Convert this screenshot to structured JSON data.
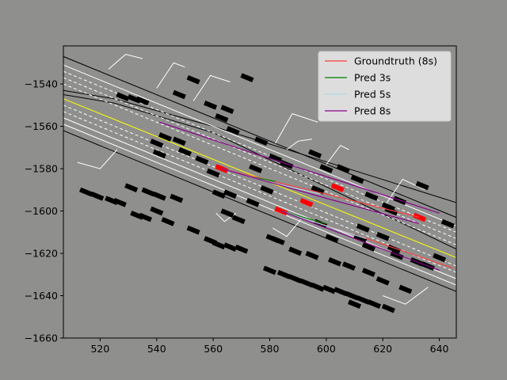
{
  "chart_data": {
    "type": "line",
    "title": "",
    "xlabel": "",
    "ylabel": "",
    "xlim": [
      507,
      646
    ],
    "ylim": [
      -1660,
      -1522
    ],
    "x_ticks": [
      520,
      540,
      560,
      580,
      600,
      620,
      640
    ],
    "y_ticks": [
      -1660,
      -1640,
      -1620,
      -1600,
      -1580,
      -1560,
      -1540
    ],
    "x_tick_labels": [
      "520",
      "540",
      "560",
      "580",
      "600",
      "620",
      "640"
    ],
    "y_tick_labels": [
      "−1660",
      "−1640",
      "−1620",
      "−1600",
      "−1580",
      "−1560",
      "−1540"
    ],
    "grid": false,
    "legend_position": "top-right",
    "colors": {
      "background": "#8f908e",
      "legend_bg": "#e6e6e6",
      "groundtruth": "#ff4040",
      "pred3": "#008000",
      "pred5": "#add8e6",
      "pred8": "#8b008b",
      "road_edge": "#000000",
      "lane": "#ffffff",
      "center_line": "#ffff00",
      "agent_target": "#ff0000",
      "agent_other": "#000000"
    },
    "legend": [
      "Groundtruth (8s)",
      "Pred 3s",
      "Pred 5s",
      "Pred 8s"
    ],
    "series": [
      {
        "name": "Groundtruth (8s)",
        "trajectories": [
          [
            [
              563,
              -1580
            ],
            [
              600,
              -1592
            ],
            [
              633,
              -1603
            ]
          ],
          [
            [
              584,
              -1600
            ],
            [
              612,
              -1612
            ],
            [
              645,
              -1627
            ]
          ]
        ]
      },
      {
        "name": "Pred 3s",
        "trajectories": [
          [
            [
              563,
              -1580
            ],
            [
              574,
              -1584
            ],
            [
              582,
              -1586
            ]
          ],
          [
            [
              584,
              -1600
            ],
            [
              592,
              -1603
            ],
            [
              600,
              -1606
            ]
          ]
        ]
      },
      {
        "name": "Pred 5s",
        "trajectories": [
          [
            [
              563,
              -1580
            ],
            [
              582,
              -1587
            ],
            [
              598,
              -1592
            ]
          ],
          [
            [
              584,
              -1600
            ],
            [
              600,
              -1607
            ],
            [
              614,
              -1613
            ]
          ]
        ]
      },
      {
        "name": "Pred 8s",
        "trajectories": [
          [
            [
              541,
              -1558
            ],
            [
              575,
              -1573
            ],
            [
              610,
              -1588
            ],
            [
              640,
              -1601
            ]
          ],
          [
            [
              563,
              -1580
            ],
            [
              600,
              -1594
            ],
            [
              633,
              -1606
            ]
          ],
          [
            [
              584,
              -1600
            ],
            [
              612,
              -1614
            ],
            [
              640,
              -1628
            ]
          ]
        ]
      }
    ],
    "map_lines": [
      {
        "kind": "road_edge",
        "points": [
          [
            507,
            -1527
          ],
          [
            646,
            -1603
          ]
        ]
      },
      {
        "kind": "road_edge",
        "points": [
          [
            507,
            -1562
          ],
          [
            646,
            -1638
          ]
        ]
      },
      {
        "kind": "road_edge",
        "points": [
          [
            507,
            -1543
          ],
          [
            525,
            -1547
          ],
          [
            560,
            -1560
          ],
          [
            646,
            -1596
          ]
        ]
      },
      {
        "kind": "road_edge",
        "points": [
          [
            507,
            -1545
          ],
          [
            525,
            -1549
          ],
          [
            560,
            -1563
          ],
          [
            646,
            -1618
          ]
        ]
      },
      {
        "kind": "center_line",
        "points": [
          [
            507,
            -1547
          ],
          [
            646,
            -1622
          ]
        ]
      },
      {
        "kind": "lane_solid",
        "points": [
          [
            507,
            -1531
          ],
          [
            646,
            -1607
          ]
        ]
      },
      {
        "kind": "lane_solid",
        "points": [
          [
            507,
            -1556
          ],
          [
            646,
            -1632
          ]
        ]
      },
      {
        "kind": "lane_solid",
        "points": [
          [
            507,
            -1559
          ],
          [
            646,
            -1635
          ]
        ]
      },
      {
        "kind": "lane_dashed",
        "points": [
          [
            507,
            -1534
          ],
          [
            646,
            -1610
          ]
        ]
      },
      {
        "kind": "lane_dashed",
        "points": [
          [
            507,
            -1537
          ],
          [
            646,
            -1613
          ]
        ]
      },
      {
        "kind": "lane_dashed",
        "points": [
          [
            507,
            -1540
          ],
          [
            646,
            -1616
          ]
        ]
      },
      {
        "kind": "lane_dashed",
        "points": [
          [
            507,
            -1550
          ],
          [
            646,
            -1626
          ]
        ]
      },
      {
        "kind": "lane_dashed",
        "points": [
          [
            507,
            -1553
          ],
          [
            646,
            -1629
          ]
        ]
      },
      {
        "kind": "crosswalk",
        "points": [
          [
            523,
            -1533
          ],
          [
            529,
            -1526
          ],
          [
            535,
            -1528
          ]
        ]
      },
      {
        "kind": "crosswalk",
        "points": [
          [
            540,
            -1542
          ],
          [
            546,
            -1530
          ],
          [
            550,
            -1532
          ]
        ]
      },
      {
        "kind": "crosswalk",
        "points": [
          [
            553,
            -1548
          ],
          [
            559,
            -1536
          ],
          [
            566,
            -1539
          ]
        ]
      },
      {
        "kind": "crosswalk",
        "points": [
          [
            582,
            -1568
          ],
          [
            588,
            -1554
          ],
          [
            597,
            -1558
          ]
        ]
      },
      {
        "kind": "crosswalk",
        "points": [
          [
            586,
            -1571
          ],
          [
            590,
            -1567
          ],
          [
            595,
            -1566
          ]
        ]
      },
      {
        "kind": "crosswalk",
        "points": [
          [
            600,
            -1578
          ],
          [
            605,
            -1569
          ],
          [
            608,
            -1571
          ]
        ]
      },
      {
        "kind": "crosswalk",
        "points": [
          [
            621,
            -1597
          ],
          [
            627,
            -1585
          ],
          [
            635,
            -1590
          ]
        ]
      },
      {
        "kind": "crosswalk",
        "points": [
          [
            512,
            -1577
          ],
          [
            520,
            -1580
          ],
          [
            526,
            -1571
          ]
        ]
      },
      {
        "kind": "crosswalk",
        "points": [
          [
            581,
            -1608
          ],
          [
            586,
            -1612
          ],
          [
            591,
            -1604
          ]
        ]
      },
      {
        "kind": "crosswalk",
        "points": [
          [
            561,
            -1601
          ],
          [
            564,
            -1605
          ],
          [
            568,
            -1601
          ]
        ]
      },
      {
        "kind": "crosswalk",
        "points": [
          [
            620,
            -1640
          ],
          [
            628,
            -1644
          ],
          [
            636,
            -1636
          ]
        ]
      }
    ],
    "agents": [
      {
        "color": "target",
        "points": [
          [
            563,
            -1580
          ],
          [
            584,
            -1600
          ],
          [
            593,
            -1596
          ],
          [
            604,
            -1589
          ],
          [
            633,
            -1603
          ]
        ]
      },
      {
        "color": "other",
        "points": [
          [
            528,
            -1546
          ],
          [
            532,
            -1547
          ],
          [
            535,
            -1548
          ],
          [
            548,
            -1545
          ],
          [
            553,
            -1538
          ],
          [
            572,
            -1537
          ],
          [
            559,
            -1550
          ],
          [
            565,
            -1552
          ],
          [
            563,
            -1556
          ],
          [
            567,
            -1562
          ],
          [
            577,
            -1567
          ],
          [
            582,
            -1575
          ],
          [
            586,
            -1578
          ],
          [
            596,
            -1573
          ],
          [
            600,
            -1580
          ],
          [
            611,
            -1585
          ],
          [
            626,
            -1595
          ],
          [
            634,
            -1588
          ],
          [
            616,
            -1593
          ],
          [
            622,
            -1598
          ],
          [
            643,
            -1606
          ],
          [
            597,
            -1590
          ],
          [
            613,
            -1608
          ],
          [
            620,
            -1612
          ],
          [
            623,
            -1600
          ],
          [
            606,
            -1580
          ],
          [
            640,
            -1622
          ],
          [
            548,
            -1567
          ],
          [
            550,
            -1572
          ],
          [
            556,
            -1576
          ],
          [
            543,
            -1565
          ],
          [
            541,
            -1573
          ],
          [
            575,
            -1580
          ],
          [
            579,
            -1590
          ],
          [
            566,
            -1592
          ],
          [
            560,
            -1582
          ],
          [
            574,
            -1596
          ],
          [
            598,
            -1606
          ],
          [
            602,
            -1613
          ],
          [
            612,
            -1613
          ],
          [
            615,
            -1617
          ],
          [
            625,
            -1621
          ],
          [
            540,
            -1568
          ],
          [
            515,
            -1591
          ],
          [
            519,
            -1593
          ],
          [
            524,
            -1595
          ],
          [
            527,
            -1596
          ],
          [
            531,
            -1589
          ],
          [
            537,
            -1591
          ],
          [
            541,
            -1593
          ],
          [
            547,
            -1594
          ],
          [
            562,
            -1592
          ],
          [
            565,
            -1601
          ],
          [
            569,
            -1604
          ],
          [
            540,
            -1600
          ],
          [
            533,
            -1602
          ],
          [
            536,
            -1603
          ],
          [
            544,
            -1605
          ],
          [
            553,
            -1609
          ],
          [
            559,
            -1614
          ],
          [
            562,
            -1616
          ],
          [
            566,
            -1617
          ],
          [
            570,
            -1618
          ],
          [
            581,
            -1613
          ],
          [
            583,
            -1614
          ],
          [
            589,
            -1619
          ],
          [
            595,
            -1621
          ],
          [
            603,
            -1624
          ],
          [
            608,
            -1626
          ],
          [
            615,
            -1629
          ],
          [
            620,
            -1633
          ],
          [
            580,
            -1628
          ],
          [
            585,
            -1630
          ],
          [
            589,
            -1632
          ],
          [
            593,
            -1634
          ],
          [
            597,
            -1636
          ],
          [
            601,
            -1637
          ],
          [
            605,
            -1638
          ],
          [
            609,
            -1640
          ],
          [
            613,
            -1642
          ],
          [
            617,
            -1644
          ],
          [
            622,
            -1646
          ],
          [
            628,
            -1637
          ],
          [
            610,
            -1644
          ],
          [
            624,
            -1618
          ],
          [
            632,
            -1624
          ],
          [
            636,
            -1626
          ]
        ]
      }
    ]
  }
}
